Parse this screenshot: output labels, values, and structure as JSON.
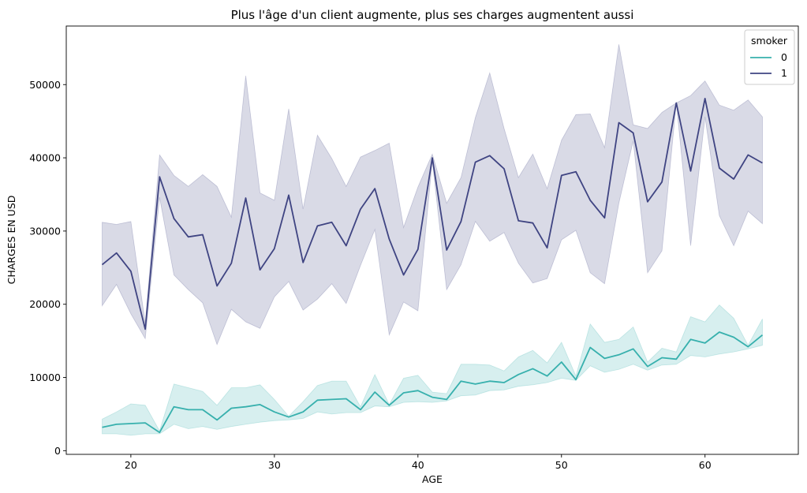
{
  "chart_data": {
    "type": "line",
    "title": "Plus l'âge d'un client augmente, plus ses charges augmentent aussi",
    "xlabel": "AGE",
    "ylabel": "CHARGES EN USD",
    "xlim": [
      15.5,
      66.5
    ],
    "ylim": [
      -500,
      58000
    ],
    "xticks": [
      20,
      30,
      40,
      50,
      60
    ],
    "yticks": [
      0,
      10000,
      20000,
      30000,
      40000,
      50000
    ],
    "grid": false,
    "legend": {
      "title": "smoker",
      "placement": "top-right"
    },
    "series": [
      {
        "name": "0",
        "color": "#37b0ad",
        "band_color": "#37b0ad",
        "x": [
          18,
          19,
          20,
          21,
          22,
          23,
          24,
          25,
          26,
          27,
          28,
          29,
          30,
          31,
          32,
          33,
          34,
          35,
          36,
          37,
          38,
          39,
          40,
          41,
          42,
          43,
          44,
          45,
          46,
          47,
          48,
          49,
          50,
          51,
          52,
          53,
          54,
          55,
          56,
          57,
          58,
          59,
          60,
          61,
          62,
          63,
          64
        ],
        "values": [
          3200,
          3600,
          3700,
          3800,
          2500,
          6000,
          5600,
          5600,
          4200,
          5800,
          6000,
          6300,
          5300,
          4600,
          5300,
          6900,
          7000,
          7100,
          5600,
          8000,
          6200,
          7900,
          8200,
          7300,
          7000,
          9500,
          9100,
          9500,
          9300,
          10400,
          11200,
          10200,
          12100,
          9700,
          14100,
          12600,
          13100,
          13900,
          11500,
          12700,
          12500,
          15200,
          14700,
          16200,
          15500,
          14200,
          15800
        ],
        "upper": [
          4300,
          5300,
          6400,
          6200,
          2700,
          9100,
          8600,
          8100,
          6200,
          8600,
          8600,
          9000,
          7000,
          4700,
          6700,
          8900,
          9500,
          9500,
          6000,
          10400,
          6300,
          9900,
          10300,
          8000,
          7800,
          11800,
          11800,
          11700,
          10900,
          12800,
          13700,
          12000,
          14800,
          10200,
          17300,
          14800,
          15200,
          16900,
          12100,
          14000,
          13500,
          18300,
          17600,
          19900,
          18100,
          14400,
          18000
        ],
        "lower": [
          2300,
          2300,
          2100,
          2300,
          2300,
          3600,
          3000,
          3300,
          2900,
          3300,
          3600,
          3900,
          4100,
          4200,
          4400,
          5300,
          5000,
          5200,
          5200,
          6100,
          6000,
          6600,
          6700,
          6600,
          6800,
          7500,
          7600,
          8200,
          8300,
          8800,
          9000,
          9300,
          9900,
          9600,
          11600,
          10700,
          11100,
          11800,
          11000,
          11700,
          11800,
          13000,
          12800,
          13200,
          13500,
          13900,
          14400
        ]
      },
      {
        "name": "1",
        "color": "#3f4482",
        "band_color": "#3f4482",
        "x": [
          18,
          19,
          20,
          21,
          22,
          23,
          24,
          25,
          26,
          27,
          28,
          29,
          30,
          31,
          32,
          33,
          34,
          35,
          36,
          37,
          38,
          39,
          40,
          41,
          42,
          43,
          44,
          45,
          46,
          47,
          48,
          49,
          50,
          51,
          52,
          53,
          54,
          55,
          56,
          57,
          58,
          59,
          60,
          61,
          62,
          63,
          64
        ],
        "values": [
          25400,
          27000,
          24500,
          16600,
          37400,
          31700,
          29200,
          29500,
          22500,
          25600,
          34500,
          24700,
          27600,
          34900,
          25700,
          30700,
          31200,
          28000,
          33000,
          35800,
          28900,
          24000,
          27500,
          40000,
          27400,
          31300,
          39400,
          40300,
          38500,
          31400,
          31100,
          27700,
          37600,
          38100,
          34200,
          31800,
          44800,
          43400,
          34000,
          36700,
          47500,
          38200,
          48100,
          38600,
          37100,
          40400,
          39300
        ],
        "upper": [
          31200,
          30900,
          31300,
          17400,
          40400,
          37600,
          36100,
          37700,
          36100,
          31900,
          51200,
          35200,
          34200,
          46700,
          33000,
          43100,
          39900,
          36100,
          40100,
          41000,
          42000,
          30500,
          36000,
          40500,
          33800,
          37300,
          45500,
          51600,
          44000,
          37300,
          40500,
          35800,
          42400,
          45900,
          46000,
          41400,
          55500,
          44500,
          44000,
          46200,
          47500,
          48500,
          50500,
          47200,
          46500,
          47900,
          45600
        ],
        "lower": [
          19800,
          22700,
          18700,
          15300,
          34600,
          24000,
          22000,
          20200,
          14500,
          19300,
          17600,
          16700,
          21000,
          23100,
          19200,
          20700,
          22800,
          20100,
          25300,
          30200,
          15800,
          20300,
          19100,
          39600,
          22000,
          25400,
          31300,
          28600,
          29800,
          25600,
          22900,
          23500,
          28800,
          30100,
          24300,
          22800,
          33800,
          42300,
          24300,
          27300,
          47500,
          28000,
          45600,
          32100,
          28000,
          32700,
          31000
        ]
      }
    ]
  }
}
